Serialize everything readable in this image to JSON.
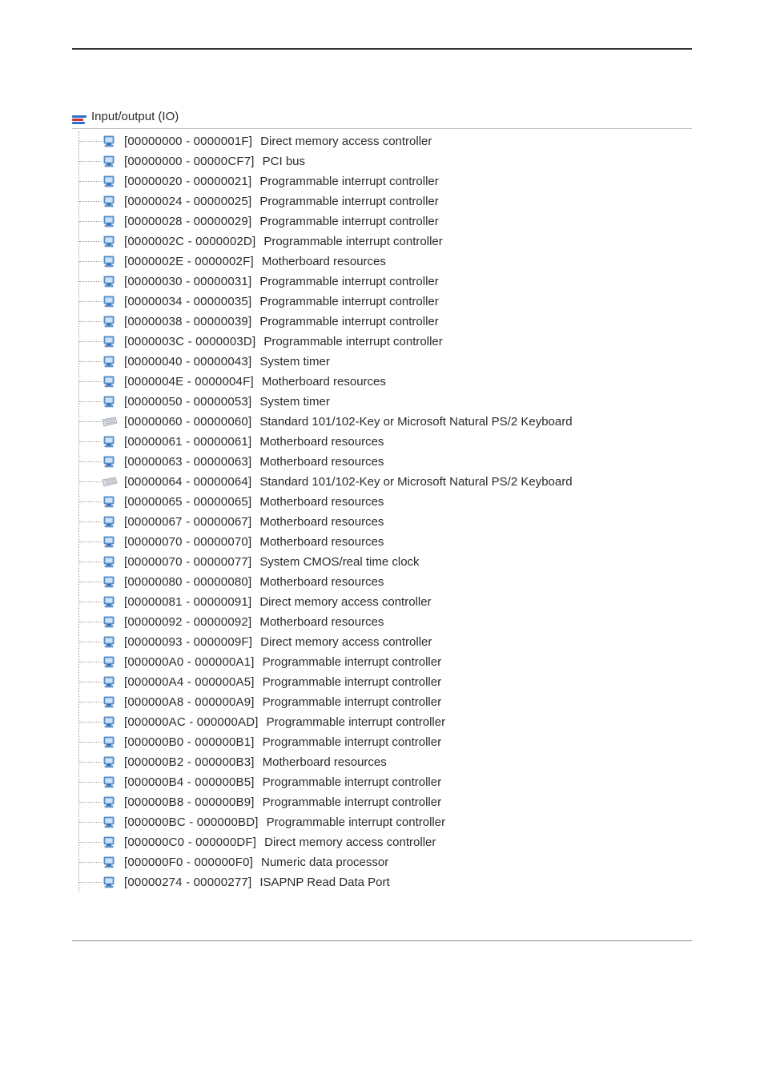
{
  "colors": {
    "text": "#2a2a2a",
    "tree_line": "#a0a0a0",
    "divider": "#c0c0c0",
    "page_rule": "#333333",
    "icon_computer_body": "#6aa3e0",
    "icon_computer_shadow": "#3b6fa8",
    "icon_computer_screen": "#cde3f7",
    "icon_keyboard_body": "#d9dde2",
    "icon_keyboard_edge": "#9aa0a6",
    "icon_root_blue": "#2a6fcf",
    "icon_root_red": "#d0342c"
  },
  "root": {
    "label": "Input/output (IO)",
    "icon": "io-root"
  },
  "items": [
    {
      "range": "[00000000 - 0000001F]",
      "desc": "Direct memory access controller",
      "icon": "computer"
    },
    {
      "range": "[00000000 - 00000CF7]",
      "desc": "PCI bus",
      "icon": "computer"
    },
    {
      "range": "[00000020 - 00000021]",
      "desc": "Programmable interrupt controller",
      "icon": "computer"
    },
    {
      "range": "[00000024 - 00000025]",
      "desc": "Programmable interrupt controller",
      "icon": "computer"
    },
    {
      "range": "[00000028 - 00000029]",
      "desc": "Programmable interrupt controller",
      "icon": "computer"
    },
    {
      "range": "[0000002C - 0000002D]",
      "desc": "Programmable interrupt controller",
      "icon": "computer"
    },
    {
      "range": "[0000002E - 0000002F]",
      "desc": "Motherboard resources",
      "icon": "computer"
    },
    {
      "range": "[00000030 - 00000031]",
      "desc": "Programmable interrupt controller",
      "icon": "computer"
    },
    {
      "range": "[00000034 - 00000035]",
      "desc": "Programmable interrupt controller",
      "icon": "computer"
    },
    {
      "range": "[00000038 - 00000039]",
      "desc": "Programmable interrupt controller",
      "icon": "computer"
    },
    {
      "range": "[0000003C - 0000003D]",
      "desc": "Programmable interrupt controller",
      "icon": "computer"
    },
    {
      "range": "[00000040 - 00000043]",
      "desc": "System timer",
      "icon": "computer"
    },
    {
      "range": "[0000004E - 0000004F]",
      "desc": "Motherboard resources",
      "icon": "computer"
    },
    {
      "range": "[00000050 - 00000053]",
      "desc": "System timer",
      "icon": "computer"
    },
    {
      "range": "[00000060 - 00000060]",
      "desc": "Standard 101/102-Key or Microsoft Natural PS/2 Keyboard",
      "icon": "keyboard"
    },
    {
      "range": "[00000061 - 00000061]",
      "desc": "Motherboard resources",
      "icon": "computer"
    },
    {
      "range": "[00000063 - 00000063]",
      "desc": "Motherboard resources",
      "icon": "computer"
    },
    {
      "range": "[00000064 - 00000064]",
      "desc": "Standard 101/102-Key or Microsoft Natural PS/2 Keyboard",
      "icon": "keyboard"
    },
    {
      "range": "[00000065 - 00000065]",
      "desc": "Motherboard resources",
      "icon": "computer"
    },
    {
      "range": "[00000067 - 00000067]",
      "desc": "Motherboard resources",
      "icon": "computer"
    },
    {
      "range": "[00000070 - 00000070]",
      "desc": "Motherboard resources",
      "icon": "computer"
    },
    {
      "range": "[00000070 - 00000077]",
      "desc": "System CMOS/real time clock",
      "icon": "computer"
    },
    {
      "range": "[00000080 - 00000080]",
      "desc": "Motherboard resources",
      "icon": "computer"
    },
    {
      "range": "[00000081 - 00000091]",
      "desc": "Direct memory access controller",
      "icon": "computer"
    },
    {
      "range": "[00000092 - 00000092]",
      "desc": "Motherboard resources",
      "icon": "computer"
    },
    {
      "range": "[00000093 - 0000009F]",
      "desc": "Direct memory access controller",
      "icon": "computer"
    },
    {
      "range": "[000000A0 - 000000A1]",
      "desc": "Programmable interrupt controller",
      "icon": "computer"
    },
    {
      "range": "[000000A4 - 000000A5]",
      "desc": "Programmable interrupt controller",
      "icon": "computer"
    },
    {
      "range": "[000000A8 - 000000A9]",
      "desc": "Programmable interrupt controller",
      "icon": "computer"
    },
    {
      "range": "[000000AC - 000000AD]",
      "desc": "Programmable interrupt controller",
      "icon": "computer"
    },
    {
      "range": "[000000B0 - 000000B1]",
      "desc": "Programmable interrupt controller",
      "icon": "computer"
    },
    {
      "range": "[000000B2 - 000000B3]",
      "desc": "Motherboard resources",
      "icon": "computer"
    },
    {
      "range": "[000000B4 - 000000B5]",
      "desc": "Programmable interrupt controller",
      "icon": "computer"
    },
    {
      "range": "[000000B8 - 000000B9]",
      "desc": "Programmable interrupt controller",
      "icon": "computer"
    },
    {
      "range": "[000000BC - 000000BD]",
      "desc": "Programmable interrupt controller",
      "icon": "computer"
    },
    {
      "range": "[000000C0 - 000000DF]",
      "desc": "Direct memory access controller",
      "icon": "computer"
    },
    {
      "range": "[000000F0 - 000000F0]",
      "desc": "Numeric data processor",
      "icon": "computer"
    },
    {
      "range": "[00000274 - 00000277]",
      "desc": "ISAPNP Read Data Port",
      "icon": "computer"
    }
  ]
}
